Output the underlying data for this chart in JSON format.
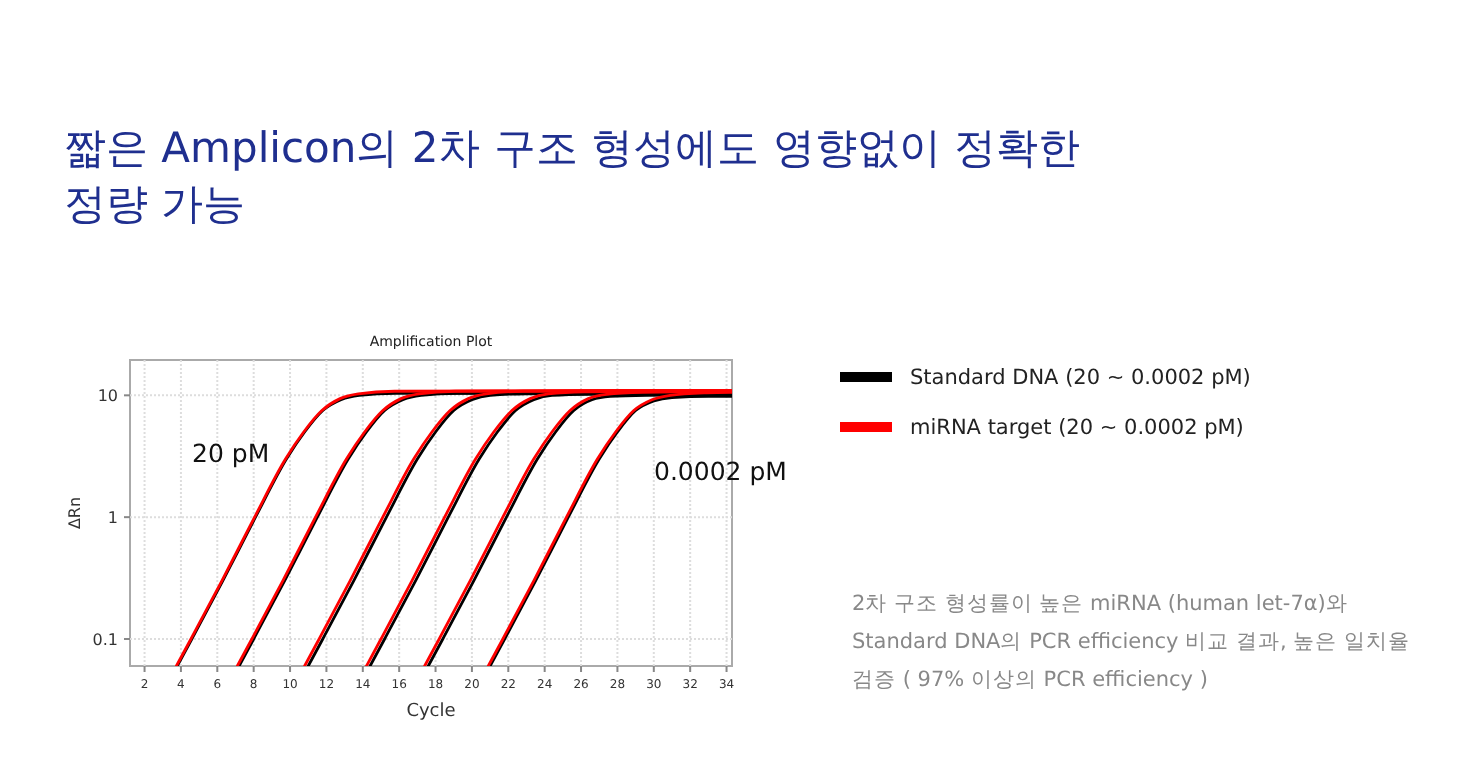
{
  "chart_data": {
    "type": "line",
    "title": "짧은 Amplicon의 2차 구조 형성에도 영향없이 정확한 정량 가능",
    "subtitle": "Amplification Plot",
    "xlabel": "Cycle",
    "ylabel": "ΔRn",
    "log": "y",
    "grid": true,
    "legend": "right",
    "line_style": "solid",
    "marker": "none",
    "xlim": [
      1.2,
      34.3
    ],
    "xticks": [
      2,
      4,
      6,
      8,
      10,
      12,
      14,
      16,
      18,
      20,
      22,
      24,
      26,
      28,
      30,
      32,
      34
    ],
    "ylim": [
      0.06,
      19.5
    ],
    "yticks": [
      0.1,
      1,
      10
    ],
    "series": [
      {
        "name": "Standard DNA (20 ~ 0.0002 pM)",
        "color": "#000000",
        "x": [
          3.8,
          4.6,
          6.3,
          8.1,
          9.8,
          10.8,
          11.8,
          12.8,
          13.8,
          15.8,
          34.3
        ],
        "values": [
          0.06,
          0.1,
          0.3,
          1,
          3,
          5,
          7.5,
          9.2,
          10,
          10.4,
          10.5
        ]
      },
      {
        "color": "#000000",
        "x": [
          7.2,
          8,
          9.7,
          11.5,
          13.2,
          14.2,
          15.2,
          16.2,
          17.2,
          19.2,
          34.3
        ],
        "values": [
          0.06,
          0.1,
          0.3,
          1,
          3,
          5,
          7.5,
          9.2,
          10,
          10.4,
          10.5
        ]
      },
      {
        "color": "#000000",
        "x": [
          11,
          11.8,
          13.5,
          15.3,
          17,
          18,
          19,
          20,
          21,
          23,
          34.3
        ],
        "values": [
          0.06,
          0.1,
          0.3,
          1,
          3,
          5,
          7.5,
          9.2,
          10,
          10.3,
          10.4
        ]
      },
      {
        "color": "#000000",
        "x": [
          14.4,
          15.2,
          16.9,
          18.7,
          20.4,
          21.4,
          22.4,
          23.4,
          24.4,
          26.4,
          34.3
        ],
        "values": [
          0.06,
          0.1,
          0.3,
          1,
          3,
          5,
          7.5,
          9.2,
          10,
          10.2,
          10.3
        ]
      },
      {
        "color": "#000000",
        "x": [
          17.6,
          18.4,
          20.1,
          21.9,
          23.6,
          24.6,
          25.6,
          26.6,
          27.6,
          29.6,
          34.3
        ],
        "values": [
          0.06,
          0.1,
          0.3,
          1,
          3,
          5,
          7.5,
          9.2,
          9.8,
          10,
          10.1
        ]
      },
      {
        "color": "#000000",
        "x": [
          21,
          21.8,
          23.5,
          25.3,
          27,
          28,
          29,
          30,
          31,
          33,
          34.3
        ],
        "values": [
          0.06,
          0.1,
          0.3,
          1,
          3,
          5,
          7.5,
          9,
          9.6,
          9.8,
          9.8
        ]
      },
      {
        "name": "miRNA target (20 ~ 0.0002 pM)",
        "color": "#ff0000",
        "x": [
          3.75,
          4.55,
          6.25,
          8.05,
          9.75,
          10.75,
          11.75,
          12.75,
          13.75,
          15.75,
          34.3
        ],
        "values": [
          0.06,
          0.1,
          0.3,
          1,
          3,
          5,
          7.5,
          9.4,
          10.3,
          10.8,
          11
        ]
      },
      {
        "color": "#ff0000",
        "x": [
          7.1,
          7.9,
          9.6,
          11.4,
          13.1,
          14.1,
          15.1,
          16.1,
          17.1,
          19.1,
          34.3
        ],
        "values": [
          0.06,
          0.1,
          0.3,
          1,
          3,
          5,
          7.5,
          9.4,
          10.3,
          10.8,
          11
        ]
      },
      {
        "color": "#ff0000",
        "x": [
          10.8,
          11.6,
          13.3,
          15.1,
          16.8,
          17.8,
          18.8,
          19.8,
          20.8,
          22.8,
          34.3
        ],
        "values": [
          0.06,
          0.1,
          0.3,
          1,
          3,
          5,
          7.5,
          9.4,
          10.3,
          10.8,
          11
        ]
      },
      {
        "color": "#ff0000",
        "x": [
          14.2,
          15,
          16.7,
          18.5,
          20.2,
          21.2,
          22.2,
          23.2,
          24.2,
          26.2,
          34.3
        ],
        "values": [
          0.06,
          0.1,
          0.3,
          1,
          3,
          5,
          7.5,
          9.4,
          10.3,
          10.7,
          10.9
        ]
      },
      {
        "color": "#ff0000",
        "x": [
          17.4,
          18.2,
          19.9,
          21.7,
          23.4,
          24.4,
          25.4,
          26.4,
          27.4,
          29.4,
          34.3
        ],
        "values": [
          0.06,
          0.1,
          0.3,
          1,
          3,
          5,
          7.5,
          9.4,
          10.2,
          10.6,
          10.8
        ]
      },
      {
        "color": "#ff0000",
        "x": [
          20.9,
          21.7,
          23.4,
          25.2,
          26.9,
          27.9,
          28.9,
          29.9,
          30.9,
          32.9,
          34.3
        ],
        "values": [
          0.06,
          0.1,
          0.3,
          1,
          3,
          5,
          7.5,
          9.2,
          10,
          10.5,
          10.6
        ]
      }
    ],
    "annotations": [
      "20 pM",
      "0.0002 pM",
      "2차 구조 형성률이 높은 miRNA (human let-7α)와 Standard DNA의 PCR efficiency 비교 결과, 높은 일치율 검증 ( 97% 이상의 PCR efficiency )"
    ]
  }
}
